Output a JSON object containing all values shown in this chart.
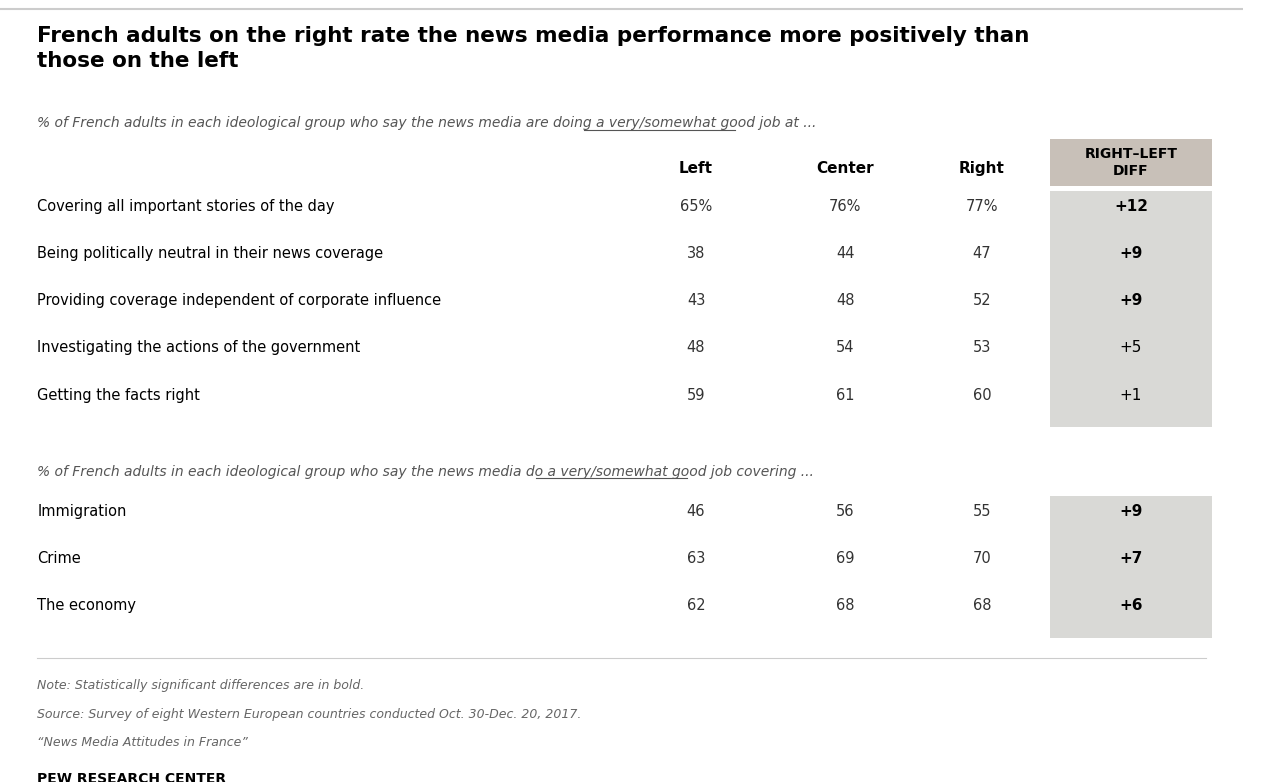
{
  "title": "French adults on the right rate the news media performance more positively than\nthose on the left",
  "subtitle1_plain": "% of French adults in each ideological group who say the news media are doing a ",
  "subtitle1_italic": "very/somewhat good job",
  "subtitle1_end": " at ...",
  "subtitle2_plain": "% of French adults in each ideological group who say the news media do a ",
  "subtitle2_italic": "very/somewhat good job",
  "subtitle2_end": " covering ...",
  "col_headers": [
    "Left",
    "Center",
    "Right",
    "RIGHT–LEFT\nDIFF"
  ],
  "section1_rows": [
    {
      "label": "Covering all important stories of the day",
      "left": "65%",
      "center": "76%",
      "right": "77%",
      "diff": "+12",
      "bold_diff": true
    },
    {
      "label": "Being politically neutral in their news coverage",
      "left": "38",
      "center": "44",
      "right": "47",
      "diff": "+9",
      "bold_diff": true
    },
    {
      "label": "Providing coverage independent of corporate influence",
      "left": "43",
      "center": "48",
      "right": "52",
      "diff": "+9",
      "bold_diff": true
    },
    {
      "label": "Investigating the actions of the government",
      "left": "48",
      "center": "54",
      "right": "53",
      "diff": "+5",
      "bold_diff": false
    },
    {
      "label": "Getting the facts right",
      "left": "59",
      "center": "61",
      "right": "60",
      "diff": "+1",
      "bold_diff": false
    }
  ],
  "section2_rows": [
    {
      "label": "Immigration",
      "left": "46",
      "center": "56",
      "right": "55",
      "diff": "+9",
      "bold_diff": true
    },
    {
      "label": "Crime",
      "left": "63",
      "center": "69",
      "right": "70",
      "diff": "+7",
      "bold_diff": true
    },
    {
      "label": "The economy",
      "left": "62",
      "center": "68",
      "right": "68",
      "diff": "+6",
      "bold_diff": true
    }
  ],
  "note_lines": [
    "Note: Statistically significant differences are in bold.",
    "Source: Survey of eight Western European countries conducted Oct. 30-Dec. 20, 2017.",
    "“News Media Attitudes in France”"
  ],
  "source_label": "PEW RESEARCH CENTER",
  "bg_color": "#ffffff",
  "diff_col_bg": "#d9d9d6",
  "header_diff_bg": "#c8c0b8",
  "title_color": "#000000",
  "text_color": "#333333",
  "note_color": "#666666"
}
